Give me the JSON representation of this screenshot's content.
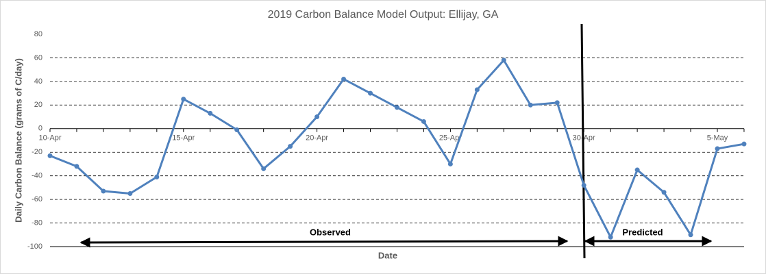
{
  "chart_data": {
    "type": "line",
    "title": "2019 Carbon Balance Model Output: Ellijay, GA",
    "x_label": "Date",
    "y_label": "Daily Carbon Balance (grams of C/day)",
    "categories": [
      "10-Apr",
      null,
      null,
      null,
      null,
      "15-Apr",
      null,
      null,
      null,
      null,
      "20-Apr",
      null,
      null,
      null,
      null,
      "25-Apr",
      null,
      null,
      null,
      null,
      "30-Apr",
      null,
      null,
      null,
      null,
      "5-May",
      null
    ],
    "values": [
      -23,
      -32,
      -53,
      -55,
      -41,
      25,
      13,
      -1,
      -34,
      -15,
      10,
      42,
      30,
      18,
      6,
      -30,
      33,
      58,
      20,
      22,
      -48,
      -92,
      -35,
      -54,
      -90,
      -17,
      -13
    ],
    "color": "#4f81bd",
    "ylim": [
      -100,
      80
    ],
    "yticks": [
      -100,
      -80,
      -60,
      -40,
      -20,
      0,
      20,
      40,
      60,
      80
    ],
    "grid": true,
    "annotations": [
      "Observed",
      "Predicted"
    ]
  }
}
